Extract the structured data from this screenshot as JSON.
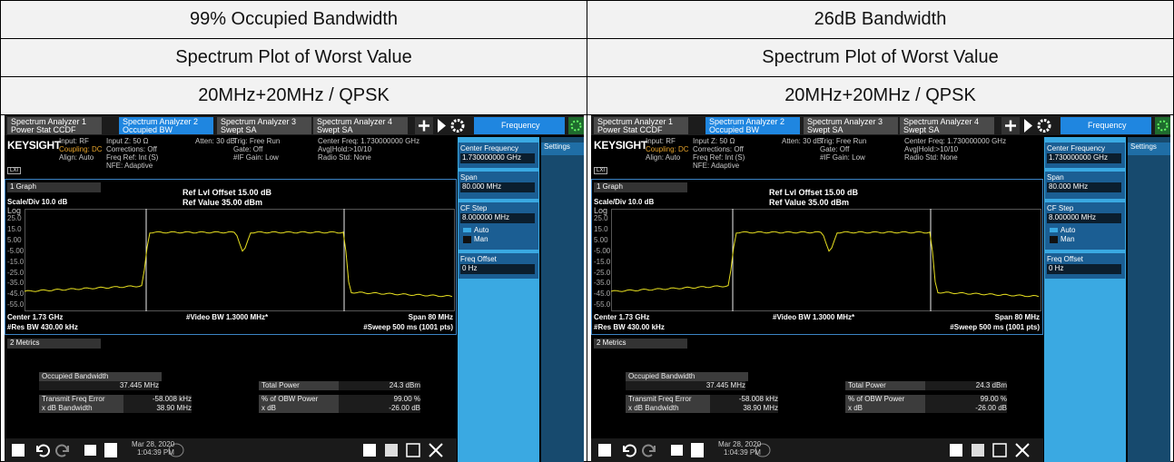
{
  "table": {
    "header_rows": [
      [
        "99% Occupied Bandwidth",
        "26dB Bandwidth"
      ],
      [
        "Spectrum Plot of Worst Value",
        "Spectrum Plot of Worst Value"
      ],
      [
        "20MHz+20MHz / QPSK",
        "20MHz+20MHz / QPSK"
      ]
    ],
    "screenshots": [
      {
        "tabs": [
          [
            "Spectrum Analyzer 1",
            "Power Stat CCDF"
          ],
          [
            "Spectrum Analyzer 2",
            "Occupied BW"
          ],
          [
            "Spectrum Analyzer 3",
            "Swept SA"
          ],
          [
            "Spectrum Analyzer 4",
            "Swept SA"
          ]
        ],
        "menu": "Frequency",
        "brand": "KEYSIGHT",
        "lxi": "LXI",
        "info": [
          [
            "Input: RF",
            "Coupling: DC",
            "Align: Auto"
          ],
          [
            "Input Z: 50 Ω",
            "Corrections: Off",
            "Freq Ref: Int (S)",
            "NFE: Adaptive"
          ],
          [
            "Atten: 30 dB"
          ],
          [
            "Trig: Free Run",
            "Gate: Off",
            "#IF Gain: Low"
          ],
          [
            "Center Freq: 1.730000000 GHz",
            "Avg|Hold:>10/10",
            "Radio Std: None"
          ]
        ],
        "graph": {
          "selector": "1 Graph",
          "ref_offset": "Ref Lvl Offset 15.00 dB",
          "scale": "Scale/Div 10.0 dB",
          "ref_value": "Ref Value 35.00 dBm",
          "log": "Log",
          "y_labels": [
            "25.0",
            "15.0",
            "5.00",
            "-5.00",
            "-15.0",
            "-25.0",
            "-35.0",
            "-45.0",
            "-55.0"
          ],
          "center": "Center 1.73 GHz",
          "video_bw": "#Video BW 1.3000 MHz*",
          "span": "Span 80 MHz",
          "res_bw": "#Res BW 430.00 kHz",
          "sweep": "#Sweep 500 ms (1001 pts)"
        },
        "metrics": {
          "selector": "2 Metrics",
          "occupied_label": "Occupied Bandwidth",
          "occupied_value": "37.445 MHz",
          "left_rows": [
            [
              "Transmit Freq Error",
              "-58.008 kHz"
            ],
            [
              "x dB Bandwidth",
              "38.90 MHz"
            ]
          ],
          "right_rows": [
            [
              "Total Power",
              "24.3 dBm"
            ],
            [
              "% of OBW Power",
              "99.00 %"
            ],
            [
              "x dB",
              "-26.00 dB"
            ]
          ]
        },
        "taskbar": {
          "date": "Mar 28, 2020",
          "time": "1:04:39 PM"
        },
        "panel": {
          "items": [
            {
              "label": "Center Frequency",
              "value": "1.730000000 GHz"
            },
            {
              "label": "Span",
              "value": "80.000 MHz"
            },
            {
              "label": "CF Step",
              "value": "8.000000 MHz"
            },
            {
              "label": "Freq Offset",
              "value": "0 Hz"
            }
          ],
          "auto": "Auto",
          "man": "Man",
          "settings": "Settings"
        }
      },
      {
        "tabs": [
          [
            "Spectrum Analyzer 1",
            "Power Stat CCDF"
          ],
          [
            "Spectrum Analyzer 2",
            "Occupied BW"
          ],
          [
            "Spectrum Analyzer 3",
            "Swept SA"
          ],
          [
            "Spectrum Analyzer 4",
            "Swept SA"
          ]
        ],
        "menu": "Frequency",
        "brand": "KEYSIGHT",
        "lxi": "LXI",
        "info": [
          [
            "Input: RF",
            "Coupling: DC",
            "Align: Auto"
          ],
          [
            "Input Z: 50 Ω",
            "Corrections: Off",
            "Freq Ref: Int (S)",
            "NFE: Adaptive"
          ],
          [
            "Atten: 30 dB"
          ],
          [
            "Trig: Free Run",
            "Gate: Off",
            "#IF Gain: Low"
          ],
          [
            "Center Freq: 1.730000000 GHz",
            "Avg|Hold:>10/10",
            "Radio Std: None"
          ]
        ],
        "graph": {
          "selector": "1 Graph",
          "ref_offset": "Ref Lvl Offset 15.00 dB",
          "scale": "Scale/Div 10.0 dB",
          "ref_value": "Ref Value 35.00 dBm",
          "log": "Log",
          "y_labels": [
            "25.0",
            "15.0",
            "5.00",
            "-5.00",
            "-15.0",
            "-25.0",
            "-35.0",
            "-45.0",
            "-55.0"
          ],
          "center": "Center 1.73 GHz",
          "video_bw": "#Video BW 1.3000 MHz*",
          "span": "Span 80 MHz",
          "res_bw": "#Res BW 430.00 kHz",
          "sweep": "#Sweep 500 ms (1001 pts)"
        },
        "metrics": {
          "selector": "2 Metrics",
          "occupied_label": "Occupied Bandwidth",
          "occupied_value": "37.445 MHz",
          "left_rows": [
            [
              "Transmit Freq Error",
              "-58.008 kHz"
            ],
            [
              "x dB Bandwidth",
              "38.90 MHz"
            ]
          ],
          "right_rows": [
            [
              "Total Power",
              "24.3 dBm"
            ],
            [
              "% of OBW Power",
              "99.00 %"
            ],
            [
              "x dB",
              "-26.00 dB"
            ]
          ]
        },
        "taskbar": {
          "date": "Mar 28, 2020",
          "time": "1:04:39 PM"
        },
        "panel": {
          "items": [
            {
              "label": "Center Frequency",
              "value": "1.730000000 GHz"
            },
            {
              "label": "Span",
              "value": "80.000 MHz"
            },
            {
              "label": "CF Step",
              "value": "8.000000 MHz"
            },
            {
              "label": "Freq Offset",
              "value": "0 Hz"
            }
          ],
          "auto": "Auto",
          "man": "Man",
          "settings": "Settings"
        }
      }
    ]
  }
}
